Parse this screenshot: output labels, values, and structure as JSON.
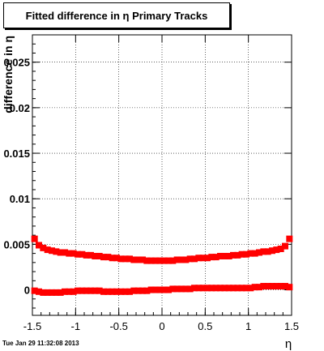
{
  "title": "Fitted difference in η  Primary Tracks",
  "footer_timestamp": "Tue Jan 29 11:32:08 2013",
  "chart_data": {
    "type": "scatter",
    "title": "Fitted difference in η  Primary Tracks",
    "xlabel": "η",
    "ylabel": "difference in η",
    "xlim": [
      -1.5,
      1.5
    ],
    "ylim": [
      -0.0028,
      0.028
    ],
    "x_ticks": [
      -1.5,
      -1,
      -0.5,
      0,
      0.5,
      1,
      1.5
    ],
    "x_tick_labels": [
      "-1.5",
      "-1",
      "-0.5",
      "0",
      "0.5",
      "1",
      "1.5"
    ],
    "y_ticks": [
      0,
      0.005,
      0.01,
      0.015,
      0.02,
      0.025
    ],
    "y_tick_labels": [
      "0",
      "0.005",
      "0.01",
      "0.015",
      "0.02",
      "0.025"
    ],
    "grid": true,
    "marker_color": "#ff0000",
    "series": [
      {
        "x": [
          -1.475,
          -1.425,
          -1.375,
          -1.325,
          -1.275,
          -1.225,
          -1.175,
          -1.125,
          -1.075,
          -1.025,
          -0.975,
          -0.925,
          -0.875,
          -0.825,
          -0.775,
          -0.725,
          -0.675,
          -0.625,
          -0.575,
          -0.525,
          -0.475,
          -0.425,
          -0.375,
          -0.325,
          -0.275,
          -0.225,
          -0.175,
          -0.125,
          -0.075,
          -0.025,
          0.025,
          0.075,
          0.125,
          0.175,
          0.225,
          0.275,
          0.325,
          0.375,
          0.425,
          0.475,
          0.525,
          0.575,
          0.625,
          0.675,
          0.725,
          0.775,
          0.825,
          0.875,
          0.925,
          0.975,
          1.025,
          1.075,
          1.125,
          1.175,
          1.225,
          1.275,
          1.325,
          1.375,
          1.425,
          1.475
        ],
        "y": [
          0.0056,
          0.0049,
          0.0046,
          0.0044,
          0.0043,
          0.0042,
          0.0041,
          0.0041,
          0.004,
          0.004,
          0.0039,
          0.0039,
          0.0038,
          0.0038,
          0.0037,
          0.0037,
          0.0036,
          0.0036,
          0.0035,
          0.0035,
          0.0034,
          0.0034,
          0.0034,
          0.0033,
          0.0033,
          0.0033,
          0.0032,
          0.0032,
          0.0032,
          0.0032,
          0.0032,
          0.0032,
          0.0032,
          0.0033,
          0.0033,
          0.0033,
          0.0034,
          0.0034,
          0.0035,
          0.0035,
          0.0035,
          0.0036,
          0.0036,
          0.0037,
          0.0037,
          0.0037,
          0.0038,
          0.0038,
          0.0039,
          0.0039,
          0.004,
          0.004,
          0.0041,
          0.0042,
          0.0042,
          0.0043,
          0.0044,
          0.0045,
          0.0048,
          0.0056
        ]
      },
      {
        "x": [
          -1.475,
          -1.425,
          -1.375,
          -1.325,
          -1.275,
          -1.225,
          -1.175,
          -1.125,
          -1.075,
          -1.025,
          -0.975,
          -0.925,
          -0.875,
          -0.825,
          -0.775,
          -0.725,
          -0.675,
          -0.625,
          -0.575,
          -0.525,
          -0.475,
          -0.425,
          -0.375,
          -0.325,
          -0.275,
          -0.225,
          -0.175,
          -0.125,
          -0.075,
          -0.025,
          0.025,
          0.075,
          0.125,
          0.175,
          0.225,
          0.275,
          0.325,
          0.375,
          0.425,
          0.475,
          0.525,
          0.575,
          0.625,
          0.675,
          0.725,
          0.775,
          0.825,
          0.875,
          0.925,
          0.975,
          1.025,
          1.075,
          1.125,
          1.175,
          1.225,
          1.275,
          1.325,
          1.375,
          1.425,
          1.475
        ],
        "y": [
          -0.0001,
          -0.0002,
          -0.0003,
          -0.0003,
          -0.0003,
          -0.0003,
          -0.0003,
          -0.0002,
          -0.0002,
          -0.0002,
          -0.0001,
          -0.0001,
          -0.0001,
          -0.0001,
          -0.0001,
          -0.0001,
          -0.0002,
          -0.0002,
          -0.0002,
          -0.0002,
          -0.0002,
          -0.0002,
          -0.0002,
          -0.0001,
          -0.0001,
          -0.0001,
          -0.0001,
          0.0,
          0.0,
          0.0,
          0.0,
          0.0,
          0.0001,
          0.0001,
          0.0001,
          0.0001,
          0.0001,
          0.0002,
          0.0002,
          0.0002,
          0.0002,
          0.0002,
          0.0002,
          0.0002,
          0.0002,
          0.0002,
          0.0002,
          0.0002,
          0.0002,
          0.0002,
          0.0002,
          0.0003,
          0.0003,
          0.0004,
          0.0004,
          0.0004,
          0.0004,
          0.0004,
          0.0004,
          0.0003
        ]
      }
    ]
  }
}
